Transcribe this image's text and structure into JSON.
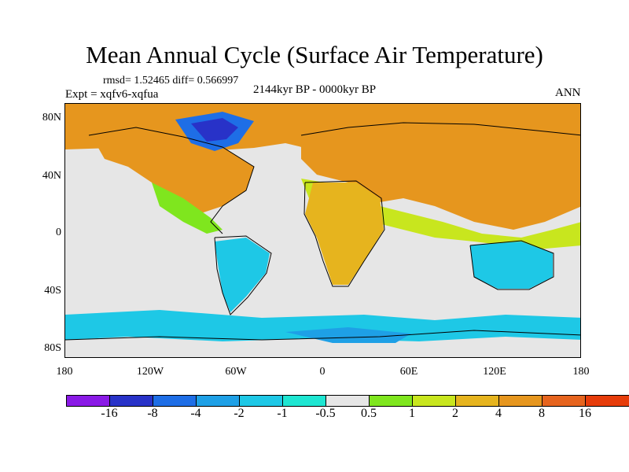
{
  "title": "Mean Annual Cycle (Surface Air Temperature)",
  "stats": "rmsd= 1.52465 diff= 0.566997",
  "experiment": "Expt = xqfv6-xqfua",
  "period": "2144kyr BP - 0000kyr BP",
  "season": "ANN",
  "lat_labels": [
    "80N",
    "40N",
    "0",
    "40S",
    "80S"
  ],
  "lon_labels": [
    "180",
    "120W",
    "60W",
    "0",
    "60E",
    "120E",
    "180"
  ],
  "colorbar": {
    "colors": [
      "#8a1ae6",
      "#2832c8",
      "#1e6ee6",
      "#1ea0e6",
      "#1ec8e6",
      "#1ee6d2",
      "#e6e6e6",
      "#7fe61e",
      "#c8e61e",
      "#e6b41e",
      "#e6961e",
      "#e6641e",
      "#e63c0a"
    ],
    "labels": [
      "-16",
      "-8",
      "-4",
      "-2",
      "-1",
      "-0.5",
      "0.5",
      "1",
      "2",
      "4",
      "8",
      "16"
    ]
  }
}
